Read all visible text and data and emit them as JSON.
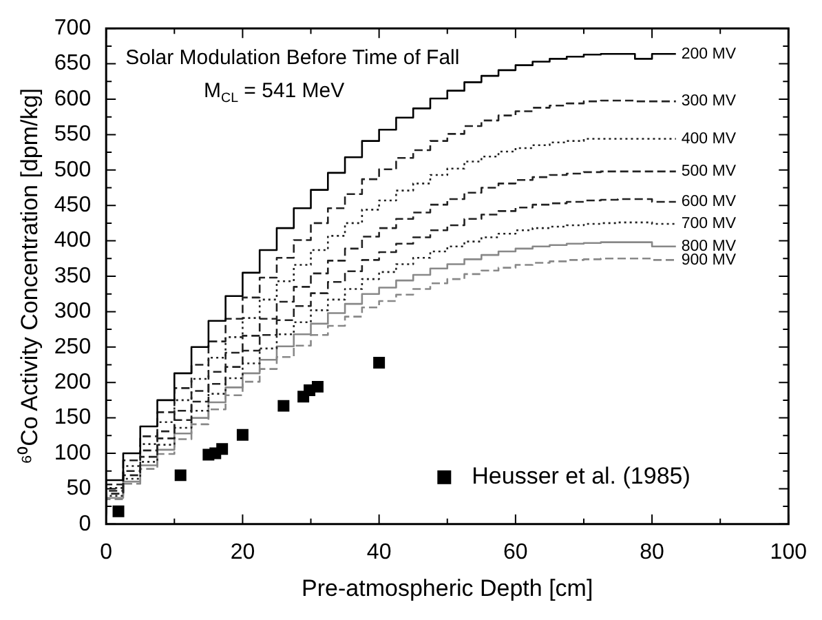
{
  "chart_data": {
    "type": "step",
    "xlabel": "Pre-atmospheric Depth [cm]",
    "ylabel": "⁶⁰Co Activity Concentration [dpm/kg]",
    "annotations": [
      "Solar Modulation Before Time of Fall",
      "M$_{CL}$ = 541 MeV"
    ],
    "x": [
      0,
      2.5,
      5,
      7.5,
      10,
      12.5,
      15,
      17.5,
      20,
      22.5,
      25,
      27.5,
      30,
      32.5,
      35,
      37.5,
      40,
      42.5,
      45,
      47.5,
      50,
      52.5,
      55,
      57.5,
      60,
      62.5,
      65,
      67.5,
      70,
      72.5,
      75,
      77.5,
      80,
      82.5,
      83.5
    ],
    "series": [
      {
        "name": "200 MV",
        "type": "step",
        "color": "#000000",
        "line_style": "solid",
        "values": [
          20,
          62,
          100,
          138,
          175,
          213,
          250,
          287,
          322,
          355,
          387,
          418,
          446,
          472,
          496,
          518,
          541,
          557,
          574,
          587,
          601,
          612,
          624,
          633,
          641,
          648,
          653,
          657,
          660,
          663,
          664,
          664,
          657,
          664,
          664
        ]
      },
      {
        "name": "300 MV",
        "type": "step",
        "color": "#222222",
        "line_style": "dashed",
        "values": [
          18,
          56,
          90,
          124,
          158,
          192,
          225,
          258,
          290,
          320,
          348,
          376,
          401,
          425,
          446,
          466,
          487,
          501,
          517,
          528,
          541,
          551,
          562,
          570,
          577,
          583,
          588,
          591,
          594,
          597,
          598,
          598,
          597,
          597,
          597
        ]
      },
      {
        "name": "400 MV",
        "type": "step",
        "color": "#222222",
        "line_style": "dotted",
        "values": [
          17,
          51,
          82,
          113,
          144,
          175,
          205,
          235,
          264,
          291,
          317,
          343,
          366,
          387,
          407,
          425,
          444,
          457,
          471,
          481,
          493,
          502,
          512,
          519,
          526,
          531,
          535,
          539,
          541,
          544,
          544,
          544,
          544,
          544,
          544
        ]
      },
      {
        "name": "500 MV",
        "type": "step",
        "color": "#222222",
        "line_style": "dashed",
        "values": [
          16,
          47,
          75,
          104,
          131,
          160,
          188,
          215,
          242,
          266,
          290,
          314,
          335,
          354,
          372,
          389,
          406,
          418,
          431,
          440,
          451,
          459,
          468,
          475,
          481,
          486,
          490,
          493,
          495,
          497,
          498,
          498,
          498,
          498,
          498
        ]
      },
      {
        "name": "600 MV",
        "type": "step",
        "color": "#222222",
        "line_style": "dashed",
        "values": [
          15,
          43,
          69,
          95,
          121,
          147,
          173,
          198,
          222,
          245,
          267,
          288,
          308,
          326,
          342,
          357,
          373,
          384,
          396,
          405,
          415,
          422,
          431,
          437,
          442,
          447,
          451,
          453,
          455,
          457,
          458,
          459,
          459,
          455,
          455
        ]
      },
      {
        "name": "700 MV",
        "type": "step",
        "color": "#222222",
        "line_style": "dotted",
        "values": [
          14,
          40,
          64,
          88,
          112,
          136,
          160,
          184,
          206,
          227,
          248,
          268,
          285,
          302,
          317,
          332,
          346,
          356,
          367,
          376,
          385,
          392,
          399,
          405,
          410,
          415,
          418,
          420,
          422,
          424,
          425,
          426,
          426,
          424,
          424
        ]
      },
      {
        "name": "800 MV",
        "type": "step",
        "color": "#888888",
        "line_style": "solid",
        "values": [
          13,
          37,
          60,
          83,
          105,
          128,
          150,
          172,
          193,
          213,
          232,
          251,
          268,
          283,
          298,
          311,
          325,
          334,
          344,
          352,
          361,
          367,
          374,
          380,
          385,
          389,
          392,
          394,
          396,
          397,
          398,
          398,
          398,
          392,
          392
        ]
      },
      {
        "name": "900 MV",
        "type": "step",
        "color": "#888888",
        "line_style": "dashed",
        "values": [
          12,
          35,
          57,
          78,
          99,
          120,
          141,
          162,
          182,
          201,
          219,
          236,
          252,
          267,
          280,
          293,
          306,
          315,
          324,
          332,
          340,
          346,
          353,
          358,
          362,
          366,
          369,
          371,
          373,
          374,
          375,
          375,
          375,
          373,
          373
        ]
      },
      {
        "name": "Heusser et al. (1985)",
        "type": "scatter",
        "color": "#000000",
        "marker": "square",
        "x": [
          1.8,
          10.9,
          15,
          16,
          17,
          20,
          26,
          28.9,
          29.8,
          31,
          40
        ],
        "values": [
          18,
          69,
          98,
          100,
          106,
          126,
          167,
          180,
          189,
          194,
          228
        ]
      }
    ],
    "xlim": [
      0,
      100
    ],
    "xticks": [
      0,
      {
        "value": 10,
        "label": null
      },
      20,
      {
        "value": 30,
        "label": null
      },
      40,
      {
        "value": 50,
        "label": null
      },
      60,
      {
        "value": 70,
        "label": null
      },
      80,
      {
        "value": 90,
        "label": null
      },
      100
    ],
    "ylim": [
      0,
      700
    ],
    "yticks": [
      0,
      {
        "value": 25,
        "label": null
      },
      50,
      {
        "value": 75,
        "label": null
      },
      100,
      {
        "value": 125,
        "label": null
      },
      150,
      {
        "value": 175,
        "label": null
      },
      200,
      {
        "value": 225,
        "label": null
      },
      250,
      {
        "value": 275,
        "label": null
      },
      300,
      {
        "value": 325,
        "label": null
      },
      350,
      {
        "value": 375,
        "label": null
      },
      400,
      {
        "value": 425,
        "label": null
      },
      450,
      {
        "value": 475,
        "label": null
      },
      500,
      {
        "value": 525,
        "label": null
      },
      550,
      {
        "value": 575,
        "label": null
      },
      600,
      {
        "value": 625,
        "label": null
      },
      650,
      {
        "value": 675,
        "label": null
      },
      700
    ],
    "legend": "bottom right",
    "grid": false
  }
}
